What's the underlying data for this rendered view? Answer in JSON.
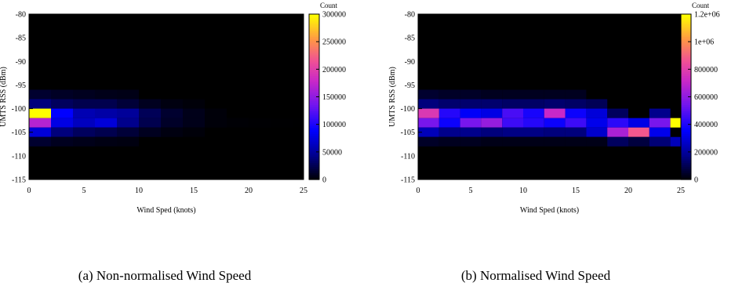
{
  "chart_data": [
    {
      "type": "heatmap",
      "caption": "(a) Non-normalised Wind Speed",
      "xlabel": "Wind Sped (knots)",
      "ylabel": "UMTS RSS (dBm)",
      "xlim": [
        0,
        25
      ],
      "ylim": [
        -115,
        -80
      ],
      "xticks": [
        "0",
        "5",
        "10",
        "15",
        "20",
        "25"
      ],
      "yticks": [
        "-80",
        "-85",
        "-90",
        "-95",
        "-100",
        "-105",
        "-110",
        "-115"
      ],
      "colorbar": {
        "title": "Count",
        "min": 0,
        "max": 300000,
        "ticks": [
          "0",
          "50000",
          "100000",
          "150000",
          "200000",
          "250000",
          "300000"
        ]
      },
      "bin_width_x": 2,
      "bin_height_y": 2,
      "cells": [
        [
          1,
          -97,
          15000
        ],
        [
          1,
          -99,
          40000
        ],
        [
          1,
          -101,
          300000
        ],
        [
          1,
          -103,
          170000
        ],
        [
          1,
          -105,
          75000
        ],
        [
          1,
          -107,
          15000
        ],
        [
          3,
          -97,
          12000
        ],
        [
          3,
          -99,
          30000
        ],
        [
          3,
          -101,
          90000
        ],
        [
          3,
          -103,
          80000
        ],
        [
          3,
          -105,
          40000
        ],
        [
          3,
          -107,
          10000
        ],
        [
          5,
          -97,
          10000
        ],
        [
          5,
          -99,
          25000
        ],
        [
          5,
          -101,
          60000
        ],
        [
          5,
          -103,
          65000
        ],
        [
          5,
          -105,
          30000
        ],
        [
          5,
          -107,
          8000
        ],
        [
          7,
          -97,
          8000
        ],
        [
          7,
          -99,
          25000
        ],
        [
          7,
          -101,
          55000
        ],
        [
          7,
          -103,
          75000
        ],
        [
          7,
          -105,
          25000
        ],
        [
          7,
          -107,
          6000
        ],
        [
          9,
          -97,
          7000
        ],
        [
          9,
          -99,
          18000
        ],
        [
          9,
          -101,
          50000
        ],
        [
          9,
          -103,
          45000
        ],
        [
          9,
          -105,
          18000
        ],
        [
          9,
          -107,
          5000
        ],
        [
          11,
          -99,
          10000
        ],
        [
          11,
          -101,
          28000
        ],
        [
          11,
          -103,
          25000
        ],
        [
          11,
          -105,
          10000
        ],
        [
          13,
          -99,
          5000
        ],
        [
          13,
          -101,
          15000
        ],
        [
          13,
          -103,
          13000
        ],
        [
          13,
          -105,
          5000
        ],
        [
          15,
          -99,
          3000
        ],
        [
          15,
          -101,
          8000
        ],
        [
          15,
          -103,
          8000
        ],
        [
          15,
          -105,
          3000
        ],
        [
          17,
          -101,
          3000
        ],
        [
          17,
          -103,
          3000
        ],
        [
          19,
          -103,
          1500
        ],
        [
          21,
          -103,
          1000
        ],
        [
          23,
          -103,
          700
        ],
        [
          25,
          -103,
          400
        ]
      ]
    },
    {
      "type": "heatmap",
      "caption": "(b) Normalised Wind Speed",
      "xlabel": "Wind Sped (knots)",
      "ylabel": "UMTS RSS (dBm)",
      "xlim": [
        0,
        25
      ],
      "ylim": [
        -115,
        -80
      ],
      "xticks": [
        "0",
        "5",
        "10",
        "15",
        "20",
        "25"
      ],
      "yticks": [
        "-80",
        "-85",
        "-90",
        "-95",
        "-100",
        "-105",
        "-110",
        "-115"
      ],
      "colorbar": {
        "title": "Count",
        "min": 0,
        "max": 1200000,
        "ticks": [
          "0",
          "200000",
          "400000",
          "600000",
          "800000",
          "1e+06",
          "1.2e+06"
        ]
      },
      "bin_width_x": 2,
      "bin_height_y": 2,
      "cells": [
        [
          1,
          -97,
          60000
        ],
        [
          1,
          -99,
          160000
        ],
        [
          1,
          -101,
          780000
        ],
        [
          1,
          -103,
          560000
        ],
        [
          1,
          -105,
          250000
        ],
        [
          1,
          -107,
          50000
        ],
        [
          3,
          -97,
          50000
        ],
        [
          3,
          -99,
          140000
        ],
        [
          3,
          -101,
          420000
        ],
        [
          3,
          -103,
          380000
        ],
        [
          3,
          -105,
          180000
        ],
        [
          3,
          -107,
          40000
        ],
        [
          5,
          -97,
          50000
        ],
        [
          5,
          -99,
          140000
        ],
        [
          5,
          -101,
          350000
        ],
        [
          5,
          -103,
          560000
        ],
        [
          5,
          -105,
          180000
        ],
        [
          5,
          -107,
          40000
        ],
        [
          7,
          -97,
          40000
        ],
        [
          7,
          -99,
          140000
        ],
        [
          7,
          -101,
          320000
        ],
        [
          7,
          -103,
          620000
        ],
        [
          7,
          -105,
          160000
        ],
        [
          7,
          -107,
          30000
        ],
        [
          9,
          -97,
          40000
        ],
        [
          9,
          -99,
          130000
        ],
        [
          9,
          -101,
          480000
        ],
        [
          9,
          -103,
          460000
        ],
        [
          9,
          -105,
          170000
        ],
        [
          9,
          -107,
          30000
        ],
        [
          11,
          -97,
          40000
        ],
        [
          11,
          -99,
          130000
        ],
        [
          11,
          -101,
          400000
        ],
        [
          11,
          -103,
          420000
        ],
        [
          11,
          -105,
          170000
        ],
        [
          11,
          -107,
          30000
        ],
        [
          13,
          -97,
          40000
        ],
        [
          13,
          -99,
          140000
        ],
        [
          13,
          -101,
          720000
        ],
        [
          13,
          -103,
          380000
        ],
        [
          13,
          -105,
          160000
        ],
        [
          13,
          -107,
          30000
        ],
        [
          15,
          -97,
          40000
        ],
        [
          15,
          -99,
          130000
        ],
        [
          15,
          -101,
          380000
        ],
        [
          15,
          -103,
          460000
        ],
        [
          15,
          -105,
          160000
        ],
        [
          15,
          -107,
          30000
        ],
        [
          17,
          -99,
          110000
        ],
        [
          17,
          -101,
          300000
        ],
        [
          17,
          -103,
          330000
        ],
        [
          17,
          -105,
          280000
        ],
        [
          17,
          -107,
          30000
        ],
        [
          19,
          -101,
          120000
        ],
        [
          19,
          -103,
          430000
        ],
        [
          19,
          -105,
          660000
        ],
        [
          19,
          -107,
          120000
        ],
        [
          21,
          -103,
          320000
        ],
        [
          21,
          -105,
          880000
        ],
        [
          21,
          -107,
          80000
        ],
        [
          23,
          -101,
          180000
        ],
        [
          23,
          -103,
          560000
        ],
        [
          23,
          -105,
          330000
        ],
        [
          23,
          -107,
          150000
        ],
        [
          25,
          -103,
          1200000
        ],
        [
          25,
          -107,
          250000
        ]
      ]
    }
  ]
}
